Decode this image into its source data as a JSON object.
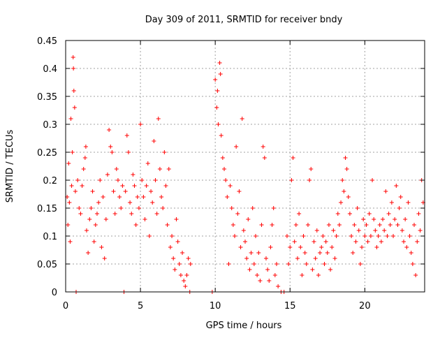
{
  "chart_data": {
    "type": "scatter",
    "title": "Day 309 of 2011, SRMTID for receiver bndy",
    "xlabel": "GPS time / hours",
    "ylabel": "SRMTID / TECUs",
    "xlim": [
      0,
      24
    ],
    "ylim": [
      0,
      0.45
    ],
    "xticks": [
      0,
      5,
      10,
      15,
      20
    ],
    "yticks": [
      0,
      0.05,
      0.1,
      0.15,
      0.2,
      0.25,
      0.3,
      0.35,
      0.4,
      0.45
    ],
    "x_tick_labels": [
      "0",
      "5",
      "10",
      "15",
      "20"
    ],
    "y_tick_labels": [
      "0",
      "0.05",
      "0.1",
      "0.15",
      "0.2",
      "0.25",
      "0.3",
      "0.35",
      "0.4",
      "0.45"
    ],
    "grid": true,
    "marker": "+",
    "color": "#ff0000",
    "series": [
      {
        "name": "SRMTID",
        "points": [
          [
            0.1,
            0.17
          ],
          [
            0.15,
            0.12
          ],
          [
            0.2,
            0.23
          ],
          [
            0.25,
            0.16
          ],
          [
            0.3,
            0.09
          ],
          [
            0.35,
            0.31
          ],
          [
            0.4,
            0.19
          ],
          [
            0.45,
            0.25
          ],
          [
            0.5,
            0.42
          ],
          [
            0.52,
            0.4
          ],
          [
            0.55,
            0.36
          ],
          [
            0.6,
            0.33
          ],
          [
            0.65,
            0.18
          ],
          [
            0.7,
            0.0
          ],
          [
            0.8,
            0.2
          ],
          [
            0.9,
            0.15
          ],
          [
            1.0,
            0.14
          ],
          [
            1.1,
            0.19
          ],
          [
            1.2,
            0.22
          ],
          [
            1.3,
            0.24
          ],
          [
            1.35,
            0.26
          ],
          [
            1.4,
            0.11
          ],
          [
            1.5,
            0.07
          ],
          [
            1.6,
            0.13
          ],
          [
            1.7,
            0.15
          ],
          [
            1.8,
            0.18
          ],
          [
            1.9,
            0.09
          ],
          [
            2.0,
            0.12
          ],
          [
            2.1,
            0.14
          ],
          [
            2.2,
            0.16
          ],
          [
            2.3,
            0.2
          ],
          [
            2.4,
            0.08
          ],
          [
            2.5,
            0.17
          ],
          [
            2.6,
            0.06
          ],
          [
            2.7,
            0.13
          ],
          [
            2.8,
            0.21
          ],
          [
            2.9,
            0.29
          ],
          [
            3.0,
            0.26
          ],
          [
            3.1,
            0.25
          ],
          [
            3.2,
            0.18
          ],
          [
            3.3,
            0.14
          ],
          [
            3.4,
            0.22
          ],
          [
            3.5,
            0.2
          ],
          [
            3.6,
            0.17
          ],
          [
            3.7,
            0.15
          ],
          [
            3.8,
            0.19
          ],
          [
            3.9,
            0.0
          ],
          [
            4.0,
            0.18
          ],
          [
            4.1,
            0.28
          ],
          [
            4.2,
            0.25
          ],
          [
            4.3,
            0.16
          ],
          [
            4.4,
            0.14
          ],
          [
            4.5,
            0.21
          ],
          [
            4.6,
            0.19
          ],
          [
            4.7,
            0.12
          ],
          [
            4.8,
            0.17
          ],
          [
            4.9,
            0.15
          ],
          [
            5.0,
            0.3
          ],
          [
            5.1,
            0.2
          ],
          [
            5.2,
            0.17
          ],
          [
            5.3,
            0.13
          ],
          [
            5.4,
            0.19
          ],
          [
            5.5,
            0.23
          ],
          [
            5.6,
            0.1
          ],
          [
            5.7,
            0.18
          ],
          [
            5.8,
            0.16
          ],
          [
            5.9,
            0.27
          ],
          [
            6.0,
            0.2
          ],
          [
            6.1,
            0.14
          ],
          [
            6.2,
            0.31
          ],
          [
            6.3,
            0.22
          ],
          [
            6.4,
            0.17
          ],
          [
            6.5,
            0.15
          ],
          [
            6.6,
            0.25
          ],
          [
            6.7,
            0.19
          ],
          [
            6.8,
            0.12
          ],
          [
            6.9,
            0.22
          ],
          [
            7.0,
            0.08
          ],
          [
            7.1,
            0.1
          ],
          [
            7.2,
            0.06
          ],
          [
            7.3,
            0.04
          ],
          [
            7.4,
            0.13
          ],
          [
            7.5,
            0.09
          ],
          [
            7.6,
            0.05
          ],
          [
            7.7,
            0.03
          ],
          [
            7.8,
            0.07
          ],
          [
            7.9,
            0.02
          ],
          [
            8.0,
            0.01
          ],
          [
            8.1,
            0.03
          ],
          [
            8.2,
            0.06
          ],
          [
            8.3,
            0.0
          ],
          [
            8.35,
            0.05
          ],
          [
            9.8,
            0.0
          ],
          [
            10.0,
            0.38
          ],
          [
            10.1,
            0.33
          ],
          [
            10.15,
            0.36
          ],
          [
            10.2,
            0.3
          ],
          [
            10.3,
            0.41
          ],
          [
            10.35,
            0.39
          ],
          [
            10.4,
            0.28
          ],
          [
            10.5,
            0.24
          ],
          [
            10.6,
            0.22
          ],
          [
            10.7,
            0.2
          ],
          [
            10.8,
            0.17
          ],
          [
            10.9,
            0.05
          ],
          [
            11.0,
            0.19
          ],
          [
            11.1,
            0.15
          ],
          [
            11.2,
            0.12
          ],
          [
            11.3,
            0.1
          ],
          [
            11.4,
            0.26
          ],
          [
            11.5,
            0.14
          ],
          [
            11.6,
            0.18
          ],
          [
            11.7,
            0.08
          ],
          [
            11.8,
            0.31
          ],
          [
            11.9,
            0.11
          ],
          [
            12.0,
            0.09
          ],
          [
            12.1,
            0.06
          ],
          [
            12.2,
            0.13
          ],
          [
            12.3,
            0.04
          ],
          [
            12.4,
            0.07
          ],
          [
            12.5,
            0.15
          ],
          [
            12.6,
            0.05
          ],
          [
            12.7,
            0.1
          ],
          [
            12.8,
            0.03
          ],
          [
            12.9,
            0.07
          ],
          [
            13.0,
            0.02
          ],
          [
            13.1,
            0.12
          ],
          [
            13.2,
            0.26
          ],
          [
            13.3,
            0.24
          ],
          [
            13.4,
            0.06
          ],
          [
            13.5,
            0.04
          ],
          [
            13.6,
            0.02
          ],
          [
            13.7,
            0.08
          ],
          [
            13.8,
            0.12
          ],
          [
            13.9,
            0.15
          ],
          [
            14.0,
            0.03
          ],
          [
            14.1,
            0.05
          ],
          [
            14.2,
            0.01
          ],
          [
            14.4,
            0.0
          ],
          [
            14.6,
            0.0
          ],
          [
            14.8,
            0.1
          ],
          [
            14.9,
            0.05
          ],
          [
            15.0,
            0.08
          ],
          [
            15.1,
            0.2
          ],
          [
            15.2,
            0.24
          ],
          [
            15.3,
            0.09
          ],
          [
            15.4,
            0.12
          ],
          [
            15.5,
            0.06
          ],
          [
            15.6,
            0.14
          ],
          [
            15.7,
            0.08
          ],
          [
            15.8,
            0.03
          ],
          [
            15.9,
            0.1
          ],
          [
            16.0,
            0.07
          ],
          [
            16.1,
            0.05
          ],
          [
            16.2,
            0.12
          ],
          [
            16.3,
            0.2
          ],
          [
            16.4,
            0.22
          ],
          [
            16.5,
            0.04
          ],
          [
            16.6,
            0.09
          ],
          [
            16.7,
            0.06
          ],
          [
            16.8,
            0.11
          ],
          [
            16.9,
            0.03
          ],
          [
            17.0,
            0.07
          ],
          [
            17.1,
            0.08
          ],
          [
            17.2,
            0.1
          ],
          [
            17.3,
            0.05
          ],
          [
            17.4,
            0.09
          ],
          [
            17.5,
            0.07
          ],
          [
            17.6,
            0.12
          ],
          [
            17.7,
            0.04
          ],
          [
            17.8,
            0.08
          ],
          [
            17.9,
            0.11
          ],
          [
            18.0,
            0.06
          ],
          [
            18.1,
            0.1
          ],
          [
            18.2,
            0.14
          ],
          [
            18.3,
            0.12
          ],
          [
            18.4,
            0.16
          ],
          [
            18.5,
            0.2
          ],
          [
            18.6,
            0.18
          ],
          [
            18.7,
            0.24
          ],
          [
            18.8,
            0.22
          ],
          [
            18.9,
            0.17
          ],
          [
            19.0,
            0.14
          ],
          [
            19.1,
            0.1
          ],
          [
            19.2,
            0.07
          ],
          [
            19.3,
            0.12
          ],
          [
            19.4,
            0.09
          ],
          [
            19.5,
            0.15
          ],
          [
            19.6,
            0.11
          ],
          [
            19.7,
            0.05
          ],
          [
            19.8,
            0.08
          ],
          [
            19.9,
            0.13
          ],
          [
            20.0,
            0.1
          ],
          [
            20.1,
            0.12
          ],
          [
            20.2,
            0.09
          ],
          [
            20.3,
            0.14
          ],
          [
            20.4,
            0.1
          ],
          [
            20.5,
            0.2
          ],
          [
            20.6,
            0.13
          ],
          [
            20.7,
            0.11
          ],
          [
            20.8,
            0.08
          ],
          [
            20.9,
            0.1
          ],
          [
            21.0,
            0.12
          ],
          [
            21.1,
            0.09
          ],
          [
            21.2,
            0.13
          ],
          [
            21.3,
            0.11
          ],
          [
            21.4,
            0.18
          ],
          [
            21.5,
            0.1
          ],
          [
            21.6,
            0.14
          ],
          [
            21.7,
            0.12
          ],
          [
            21.8,
            0.16
          ],
          [
            21.9,
            0.1
          ],
          [
            22.0,
            0.13
          ],
          [
            22.1,
            0.19
          ],
          [
            22.2,
            0.12
          ],
          [
            22.3,
            0.15
          ],
          [
            22.4,
            0.17
          ],
          [
            22.5,
            0.11
          ],
          [
            22.6,
            0.09
          ],
          [
            22.7,
            0.13
          ],
          [
            22.8,
            0.08
          ],
          [
            22.9,
            0.16
          ],
          [
            23.0,
            0.1
          ],
          [
            23.1,
            0.07
          ],
          [
            23.2,
            0.05
          ],
          [
            23.3,
            0.12
          ],
          [
            23.4,
            0.03
          ],
          [
            23.5,
            0.09
          ],
          [
            23.6,
            0.14
          ],
          [
            23.7,
            0.11
          ],
          [
            23.8,
            0.2
          ],
          [
            23.9,
            0.16
          ]
        ]
      }
    ]
  }
}
